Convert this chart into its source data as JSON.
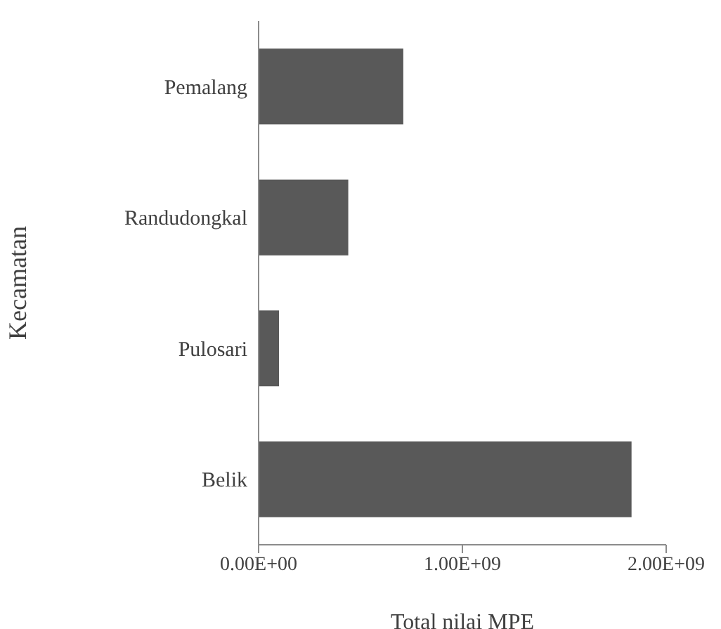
{
  "chart_data": {
    "type": "bar",
    "orientation": "horizontal",
    "xlabel": "Total nilai MPE",
    "ylabel": "Kecamatan",
    "categories": [
      "Pemalang",
      "Randudongkal",
      "Pulosari",
      "Belik"
    ],
    "values": [
      710000000.0,
      440000000.0,
      100000000.0,
      1830000000.0
    ],
    "color": "#595959",
    "xlim": [
      0,
      2000000000.0
    ],
    "xticks": [
      {
        "value": 0,
        "label": "0.00E+00"
      },
      {
        "value": 1000000000.0,
        "label": "1.00E+09"
      },
      {
        "value": 2000000000.0,
        "label": "2.00E+09"
      }
    ],
    "grid": false,
    "legend": false
  }
}
